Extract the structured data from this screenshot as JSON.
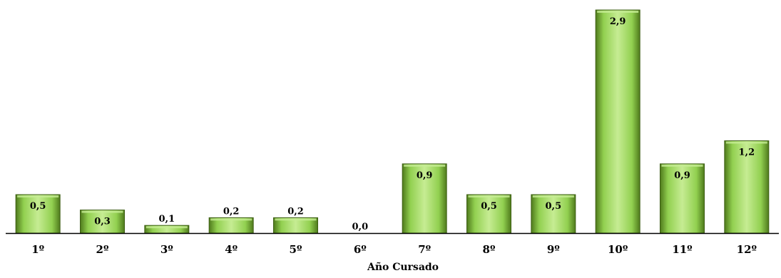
{
  "chart_data": {
    "type": "bar",
    "title": "",
    "xlabel": "Año Cursado",
    "ylabel": "",
    "categories": [
      "1º",
      "2º",
      "3º",
      "4º",
      "5º",
      "6º",
      "7º",
      "8º",
      "9º",
      "10º",
      "11º",
      "12º"
    ],
    "values": [
      0.5,
      0.3,
      0.1,
      0.2,
      0.2,
      0.0,
      0.9,
      0.5,
      0.5,
      2.9,
      0.9,
      1.2
    ],
    "data_labels": [
      "0,5",
      "0,3",
      "0,1",
      "0,2",
      "0,2",
      "0,0",
      "0,9",
      "0,5",
      "0,5",
      "2,9",
      "0,9",
      "1,2"
    ],
    "ylim": [
      0,
      2.9
    ],
    "grid": false,
    "legend": "none",
    "colors": {
      "bar_fill": "#92d050",
      "bar_light": "#c6ec93",
      "bar_dark": "#4f7a1c",
      "bar_stroke": "#3d5f14",
      "axis": "#000000"
    }
  }
}
